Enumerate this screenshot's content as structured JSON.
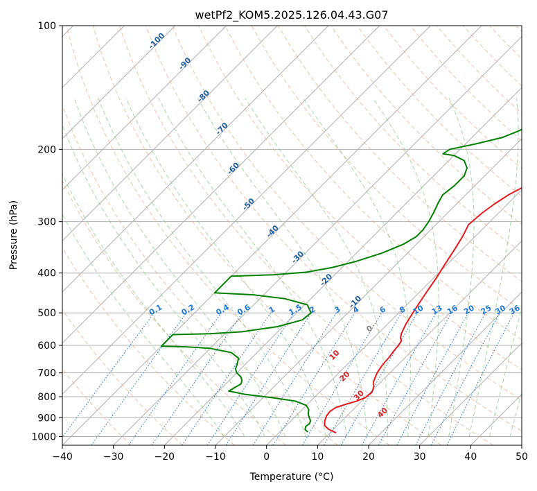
{
  "chart_data": {
    "type": "line",
    "title": "wetPf2_KOM5.2025.126.04.43.G07",
    "xlabel": "Temperature (°C)",
    "ylabel": "Pressure (hPa)",
    "xlim": [
      -40,
      50
    ],
    "ylim": [
      1050,
      100
    ],
    "y_scale": "log",
    "grid": true,
    "x_ticks": [
      -40,
      -30,
      -20,
      -10,
      0,
      10,
      20,
      30,
      40,
      50
    ],
    "y_ticks": [
      100,
      200,
      300,
      400,
      500,
      600,
      700,
      800,
      900,
      1000
    ],
    "colors": {
      "temperature": "#e31a1c",
      "dewpoint": "#008000",
      "isotherm": "#b0b0b0",
      "dry_adiabat": "#f4a582",
      "moist_adiabat": "#7fc97f",
      "mixing_ratio": "#1f78d4",
      "isotherm_label": "#1f5f9f",
      "moist_label": "#d62728",
      "dry_label_zero": "#808080"
    },
    "series": [
      {
        "key": "temperature",
        "points": [
          [
            11.2,
            980
          ],
          [
            9,
            960
          ],
          [
            7.5,
            940
          ],
          [
            6.6,
            915
          ],
          [
            6,
            890
          ],
          [
            5.8,
            868
          ],
          [
            6.2,
            850
          ],
          [
            7.5,
            835
          ],
          [
            9,
            820
          ],
          [
            10,
            805
          ],
          [
            10.3,
            780
          ],
          [
            9.5,
            755
          ],
          [
            8.5,
            735
          ],
          [
            7.5,
            700
          ],
          [
            7,
            670
          ],
          [
            6.8,
            640
          ],
          [
            6.5,
            620
          ],
          [
            6.3,
            600
          ],
          [
            6,
            585
          ],
          [
            5.2,
            575
          ],
          [
            4.5,
            560
          ],
          [
            3.5,
            530
          ],
          [
            2.5,
            490
          ],
          [
            1.5,
            450
          ],
          [
            0.5,
            410
          ],
          [
            -0.5,
            380
          ],
          [
            -1.5,
            350
          ],
          [
            -2.5,
            325
          ],
          [
            -3.6,
            305
          ],
          [
            -3.2,
            285
          ],
          [
            -2.6,
            272
          ],
          [
            -1.6,
            258
          ],
          [
            0,
            245
          ],
          [
            2.5,
            232
          ],
          [
            5.5,
            222
          ],
          [
            8.5,
            212
          ],
          [
            10.5,
            200
          ],
          [
            12.5,
            185
          ],
          [
            13.5,
            170
          ],
          [
            14.8,
            158
          ],
          [
            16.5,
            146
          ],
          [
            18.5,
            136
          ],
          [
            19.8,
            128
          ],
          [
            20.5,
            120
          ],
          [
            20.9,
            112
          ],
          [
            21.8,
            106
          ],
          [
            23.3,
            100
          ]
        ]
      },
      {
        "key": "dewpoint",
        "points": [
          [
            5.5,
            975
          ],
          [
            4.5,
            962
          ],
          [
            4,
            945
          ],
          [
            4.2,
            930
          ],
          [
            3.8,
            915
          ],
          [
            3,
            900
          ],
          [
            2,
            880
          ],
          [
            1.3,
            860
          ],
          [
            0,
            840
          ],
          [
            -3,
            820
          ],
          [
            -8,
            805
          ],
          [
            -14,
            790
          ],
          [
            -18,
            775
          ],
          [
            -17.5,
            760
          ],
          [
            -17,
            745
          ],
          [
            -17.5,
            730
          ],
          [
            -18.5,
            715
          ],
          [
            -20,
            700
          ],
          [
            -21,
            685
          ],
          [
            -21.5,
            670
          ],
          [
            -22.5,
            645
          ],
          [
            -25,
            625
          ],
          [
            -30,
            610
          ],
          [
            -35,
            605
          ],
          [
            -40,
            603
          ],
          [
            -40,
            565
          ],
          [
            -33,
            562
          ],
          [
            -27,
            556
          ],
          [
            -21,
            540
          ],
          [
            -17.5,
            520
          ],
          [
            -17.2,
            500
          ],
          [
            -19.5,
            478
          ],
          [
            -25,
            462
          ],
          [
            -32,
            452
          ],
          [
            -40,
            447
          ],
          [
            -40,
            407
          ],
          [
            -32,
            404
          ],
          [
            -26,
            398
          ],
          [
            -22,
            388
          ],
          [
            -18.5,
            375
          ],
          [
            -15,
            358
          ],
          [
            -12.5,
            340
          ],
          [
            -11.5,
            326
          ],
          [
            -11.5,
            314
          ],
          [
            -12,
            300
          ],
          [
            -12.8,
            285
          ],
          [
            -13.8,
            270
          ],
          [
            -14.5,
            258
          ],
          [
            -14,
            245
          ],
          [
            -14,
            232
          ],
          [
            -15,
            222
          ],
          [
            -17,
            213
          ],
          [
            -20,
            207
          ],
          [
            -22.5,
            205
          ],
          [
            -22,
            200
          ],
          [
            -18,
            194
          ],
          [
            -14,
            187
          ],
          [
            -12,
            180
          ],
          [
            -11,
            173
          ],
          [
            -11,
            166
          ],
          [
            -10.5,
            160
          ],
          [
            -10,
            154
          ],
          [
            -9.5,
            148
          ],
          [
            -9.5,
            142
          ],
          [
            -10,
            136
          ],
          [
            -9.5,
            130
          ],
          [
            -8,
            125
          ],
          [
            -6,
            120
          ],
          [
            -4,
            116
          ],
          [
            -1,
            110
          ],
          [
            3,
            102.5
          ],
          [
            5,
            100
          ]
        ]
      }
    ],
    "annotations": {
      "isotherm_labels": [
        "-100",
        "-90",
        "-80",
        "-70",
        "-60",
        "-50",
        "-40",
        "-30",
        "-20",
        "-10"
      ],
      "mixing_ratio_labels": [
        "0.1",
        "0.2",
        "0.4",
        "0.6",
        "1",
        "1.5",
        "2",
        "3",
        "4",
        "6",
        "8",
        "10",
        "13",
        "16",
        "20",
        "25",
        "30",
        "36"
      ],
      "moist_adiabat_labels": [
        "10",
        "20",
        "30",
        "40"
      ],
      "zero_label": "0"
    }
  }
}
